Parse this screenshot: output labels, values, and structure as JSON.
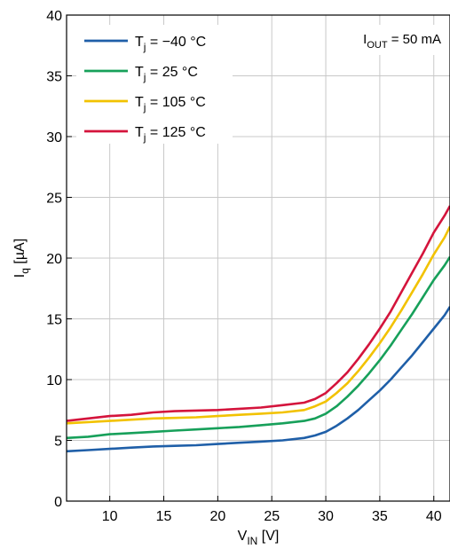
{
  "chart_data": {
    "type": "line",
    "title": "",
    "annotation": {
      "main": "I",
      "sub": "OUT",
      "rest": " = 50 mA"
    },
    "xlabel": {
      "main": "V",
      "sub": "IN",
      "rest": " [V]"
    },
    "ylabel": {
      "main": "I",
      "sub": "q",
      "rest": " [µA]"
    },
    "xlim": [
      6,
      41.5
    ],
    "ylim": [
      0,
      40
    ],
    "xticks": [
      10,
      15,
      20,
      25,
      30,
      35,
      40
    ],
    "yticks": [
      0,
      5,
      10,
      15,
      20,
      25,
      30,
      35,
      40
    ],
    "grid": true,
    "legend_position": "top-left",
    "series": [
      {
        "name": "−40 °C",
        "label": {
          "main": "T",
          "sub": "j",
          "rest": " = −40 °C"
        },
        "color": "#1f5fa8",
        "x": [
          6,
          8,
          10,
          12,
          14,
          16,
          18,
          20,
          22,
          24,
          26,
          28,
          29,
          30,
          31,
          32,
          33,
          34,
          35,
          36,
          37,
          38,
          39,
          40,
          41,
          41.5
        ],
        "y": [
          4.1,
          4.2,
          4.3,
          4.4,
          4.5,
          4.55,
          4.6,
          4.7,
          4.8,
          4.9,
          5.0,
          5.2,
          5.4,
          5.7,
          6.2,
          6.8,
          7.5,
          8.3,
          9.1,
          10.0,
          11.0,
          12.0,
          13.1,
          14.2,
          15.3,
          16.0
        ]
      },
      {
        "name": "25 °C",
        "label": {
          "main": "T",
          "sub": "j",
          "rest": " = 25 °C"
        },
        "color": "#17a05a",
        "x": [
          6,
          8,
          10,
          12,
          14,
          16,
          18,
          20,
          22,
          24,
          26,
          28,
          29,
          30,
          31,
          32,
          33,
          34,
          35,
          36,
          37,
          38,
          39,
          40,
          41,
          41.5
        ],
        "y": [
          5.2,
          5.3,
          5.5,
          5.6,
          5.7,
          5.8,
          5.9,
          6.0,
          6.1,
          6.25,
          6.4,
          6.6,
          6.8,
          7.2,
          7.8,
          8.6,
          9.5,
          10.5,
          11.6,
          12.8,
          14.1,
          15.4,
          16.8,
          18.2,
          19.4,
          20.1
        ]
      },
      {
        "name": "105 °C",
        "label": {
          "main": "T",
          "sub": "j",
          "rest": " = 105 °C"
        },
        "color": "#f2c200",
        "x": [
          6,
          8,
          10,
          12,
          14,
          16,
          18,
          20,
          22,
          24,
          26,
          28,
          29,
          30,
          31,
          32,
          33,
          34,
          35,
          36,
          37,
          38,
          39,
          40,
          41,
          41.5
        ],
        "y": [
          6.4,
          6.5,
          6.6,
          6.7,
          6.8,
          6.85,
          6.9,
          7.0,
          7.1,
          7.2,
          7.3,
          7.5,
          7.8,
          8.2,
          8.9,
          9.7,
          10.7,
          11.8,
          13.0,
          14.3,
          15.7,
          17.2,
          18.7,
          20.3,
          21.7,
          22.6
        ]
      },
      {
        "name": "125 °C",
        "label": {
          "main": "T",
          "sub": "j",
          "rest": " = 125 °C"
        },
        "color": "#d4143c",
        "x": [
          6,
          8,
          10,
          12,
          14,
          16,
          18,
          20,
          22,
          24,
          26,
          28,
          29,
          30,
          31,
          32,
          33,
          34,
          35,
          36,
          37,
          38,
          39,
          40,
          41,
          41.5
        ],
        "y": [
          6.6,
          6.8,
          7.0,
          7.1,
          7.3,
          7.4,
          7.45,
          7.5,
          7.6,
          7.7,
          7.9,
          8.1,
          8.4,
          8.9,
          9.7,
          10.6,
          11.7,
          12.9,
          14.2,
          15.6,
          17.2,
          18.8,
          20.4,
          22.1,
          23.5,
          24.3
        ]
      }
    ]
  }
}
